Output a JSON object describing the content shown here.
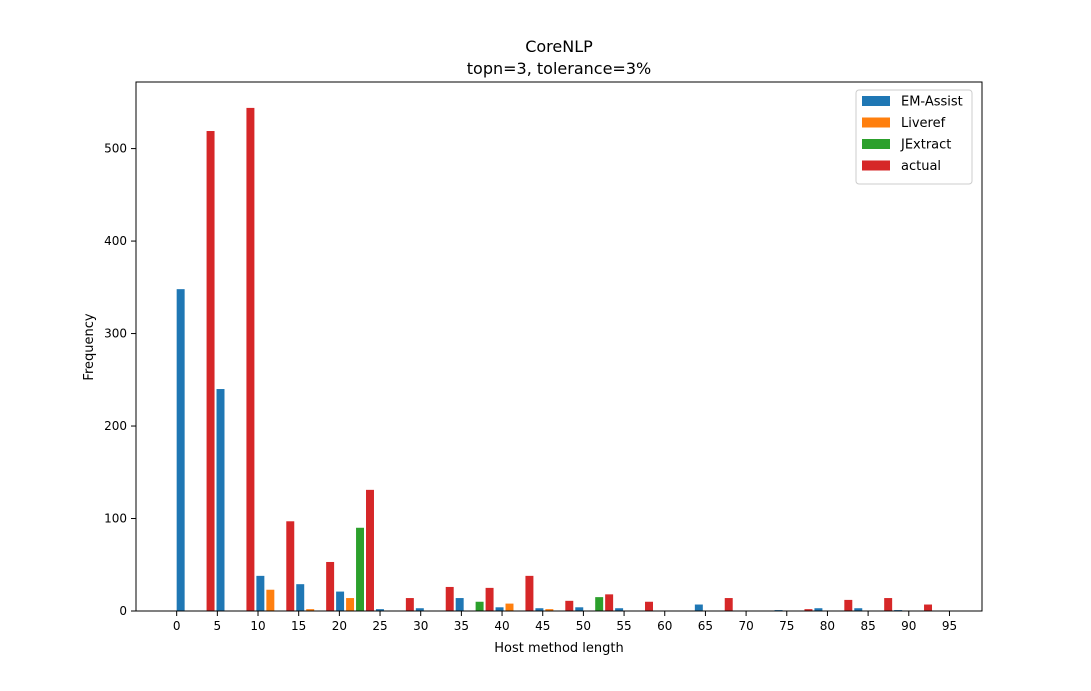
{
  "chart_data": {
    "type": "bar",
    "title": "CoreNLP",
    "subtitle": "topn=3, tolerance=3%",
    "xlabel": "Host method length",
    "ylabel": "Frequency",
    "xlim": [
      -5,
      99
    ],
    "ylim": [
      0,
      572
    ],
    "xticks": [
      0,
      5,
      10,
      15,
      20,
      25,
      30,
      35,
      40,
      45,
      50,
      55,
      60,
      65,
      70,
      75,
      80,
      85,
      90,
      95
    ],
    "yticks": [
      0,
      100,
      200,
      300,
      400,
      500
    ],
    "bin_width": 4.9,
    "legend_position": "top-right",
    "bins": [
      0.0,
      4.9,
      9.8,
      14.7,
      19.6,
      24.5,
      29.4,
      34.3,
      39.2,
      44.1,
      49.0,
      53.9,
      58.8,
      63.7,
      68.6,
      73.5,
      78.4,
      83.3,
      88.2,
      93.1
    ],
    "series": [
      {
        "name": "EM-Assist",
        "color": "#1f77b4",
        "values": [
          348,
          240,
          38,
          29,
          21,
          2,
          3,
          14,
          4,
          3,
          4,
          3,
          0,
          7,
          0,
          1,
          3,
          3,
          1,
          0
        ]
      },
      {
        "name": "Liveref",
        "color": "#ff7f0e",
        "values": [
          0,
          0,
          23,
          2,
          14,
          0,
          0,
          0,
          8,
          2,
          0,
          0,
          0,
          0,
          0,
          0,
          0,
          0,
          0,
          0
        ]
      },
      {
        "name": "JExtract",
        "color": "#2ca02c",
        "values": [
          0,
          0,
          0,
          0,
          90,
          0,
          0,
          10,
          0,
          0,
          15,
          0,
          0,
          0,
          0,
          0,
          0,
          0,
          0,
          0
        ]
      },
      {
        "name": "actual",
        "color": "#d62728",
        "values": [
          519,
          544,
          97,
          53,
          131,
          14,
          26,
          25,
          38,
          11,
          18,
          10,
          0,
          14,
          0,
          2,
          12,
          14,
          7,
          0
        ]
      }
    ]
  }
}
